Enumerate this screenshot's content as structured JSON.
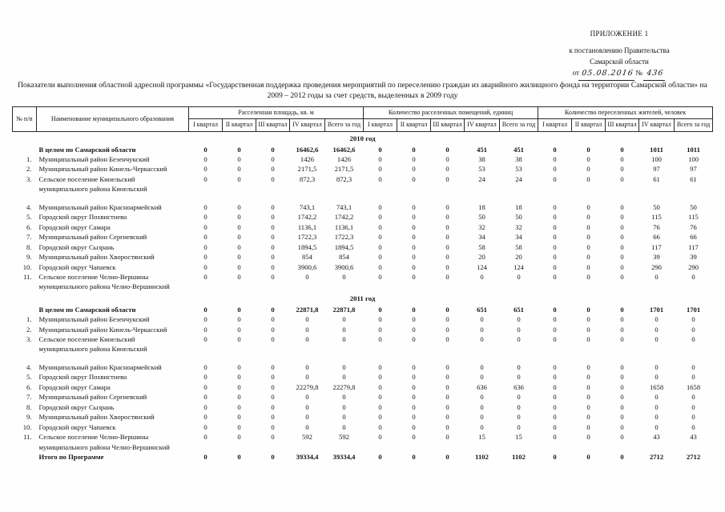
{
  "appendix": {
    "title": "ПРИЛОЖЕНИЕ 1",
    "line2": "к постановлению Правительства",
    "line3": "Самарской области",
    "date_prefix": "от",
    "date": "05.08.2016",
    "number_sign": "№",
    "number": "436"
  },
  "title": "Показатели выполнения областной адресной программы «Государственная поддержка проведения мероприятий по переселению граждан из аварийного жилищного фонда  на территории Самарской области» на 2009 –  2012 годы за счет средств, выделенных в 2009 году",
  "table": {
    "col_num_header": "№ п/п",
    "col_name_header": "Наименование муниципального образования",
    "groups": [
      "Расселенная площадь, кв. м",
      "Количество расселенных помещений, единиц",
      "Количество переселенных жителей, человек"
    ],
    "quarters": [
      "I квартал",
      "II квартал",
      "III квартал",
      "IV квартал",
      "Всего за год"
    ],
    "sections": [
      {
        "label": "2010 год",
        "rows": [
          {
            "num": "",
            "name": "В целом по Самарской области",
            "bold": true,
            "values": [
              "0",
              "0",
              "0",
              "16462,6",
              "16462,6",
              "0",
              "0",
              "0",
              "451",
              "451",
              "0",
              "0",
              "0",
              "1011",
              "1011"
            ]
          },
          {
            "num": "1.",
            "name": "Муниципальный район Безенчукский",
            "values": [
              "0",
              "0",
              "0",
              "1426",
              "1426",
              "0",
              "0",
              "0",
              "38",
              "38",
              "0",
              "0",
              "0",
              "100",
              "100"
            ]
          },
          {
            "num": "2.",
            "name": "Муниципальный район Кинель-Черкасский",
            "values": [
              "0",
              "0",
              "0",
              "2171,5",
              "2171,5",
              "0",
              "0",
              "0",
              "53",
              "53",
              "0",
              "0",
              "0",
              "97",
              "97"
            ]
          },
          {
            "num": "3.",
            "name": "Сельское поселение Кинельский\nмуниципального района Кинельский",
            "gap_after": true,
            "values": [
              "0",
              "0",
              "0",
              "872,3",
              "872,3",
              "0",
              "0",
              "0",
              "24",
              "24",
              "0",
              "0",
              "0",
              "61",
              "61"
            ]
          },
          {
            "num": "4.",
            "name": "Муниципальный район Красноармейский",
            "values": [
              "0",
              "0",
              "0",
              "743,1",
              "743,1",
              "0",
              "0",
              "0",
              "18",
              "18",
              "0",
              "0",
              "0",
              "50",
              "50"
            ]
          },
          {
            "num": "5.",
            "name": "Городской округ Похвистнево",
            "values": [
              "0",
              "0",
              "0",
              "1742,2",
              "1742,2",
              "0",
              "0",
              "0",
              "50",
              "50",
              "0",
              "0",
              "0",
              "115",
              "115"
            ]
          },
          {
            "num": "6.",
            "name": "Городской округ Самара",
            "values": [
              "0",
              "0",
              "0",
              "1136,1",
              "1136,1",
              "0",
              "0",
              "0",
              "32",
              "32",
              "0",
              "0",
              "0",
              "76",
              "76"
            ]
          },
          {
            "num": "7.",
            "name": "Муниципальный район Сергиевский",
            "values": [
              "0",
              "0",
              "0",
              "1722,3",
              "1722,3",
              "0",
              "0",
              "0",
              "34",
              "34",
              "0",
              "0",
              "0",
              "66",
              "66"
            ]
          },
          {
            "num": "8.",
            "name": "Городской округ Сызрань",
            "values": [
              "0",
              "0",
              "0",
              "1894,5",
              "1894,5",
              "0",
              "0",
              "0",
              "58",
              "58",
              "0",
              "0",
              "0",
              "117",
              "117"
            ]
          },
          {
            "num": "9.",
            "name": "Муниципальный район Хворостянский",
            "values": [
              "0",
              "0",
              "0",
              "854",
              "854",
              "0",
              "0",
              "0",
              "20",
              "20",
              "0",
              "0",
              "0",
              "39",
              "39"
            ]
          },
          {
            "num": "10.",
            "name": "Городской округ Чапаевск",
            "values": [
              "0",
              "0",
              "0",
              "3900,6",
              "3900,6",
              "0",
              "0",
              "0",
              "124",
              "124",
              "0",
              "0",
              "0",
              "290",
              "290"
            ]
          },
          {
            "num": "11.",
            "name": "Сельское поселение Челно-Вершины\nмуниципального района Челно-Вершинский",
            "values": [
              "0",
              "0",
              "0",
              "0",
              "0",
              "0",
              "0",
              "0",
              "0",
              "0",
              "0",
              "0",
              "0",
              "0",
              "0"
            ]
          }
        ]
      },
      {
        "label": "2011 год",
        "rows": [
          {
            "num": "",
            "name": "В целом по Самарской области",
            "bold": true,
            "values": [
              "0",
              "0",
              "0",
              "22871,8",
              "22871,8",
              "0",
              "0",
              "0",
              "651",
              "651",
              "0",
              "0",
              "0",
              "1701",
              "1701"
            ]
          },
          {
            "num": "1.",
            "name": "Муниципальный район Безенчукский",
            "values": [
              "0",
              "0",
              "0",
              "0",
              "0",
              "0",
              "0",
              "0",
              "0",
              "0",
              "0",
              "0",
              "0",
              "0",
              "0"
            ]
          },
          {
            "num": "2.",
            "name": "Муниципальный район Кинель-Черкасский",
            "values": [
              "0",
              "0",
              "0",
              "0",
              "0",
              "0",
              "0",
              "0",
              "0",
              "0",
              "0",
              "0",
              "0",
              "0",
              "0"
            ]
          },
          {
            "num": "3.",
            "name": "Сельское поселение Кинельский\nмуниципального района Кинельский",
            "gap_after": true,
            "values": [
              "0",
              "0",
              "0",
              "0",
              "0",
              "0",
              "0",
              "0",
              "0",
              "0",
              "0",
              "0",
              "0",
              "0",
              "0"
            ]
          },
          {
            "num": "4.",
            "name": "Муниципальный район Красноармейский",
            "values": [
              "0",
              "0",
              "0",
              "0",
              "0",
              "0",
              "0",
              "0",
              "0",
              "0",
              "0",
              "0",
              "0",
              "0",
              "0"
            ]
          },
          {
            "num": "5.",
            "name": "Городской округ Похвистнево",
            "values": [
              "0",
              "0",
              "0",
              "0",
              "0",
              "0",
              "0",
              "0",
              "0",
              "0",
              "0",
              "0",
              "0",
              "0",
              "0"
            ]
          },
          {
            "num": "6.",
            "name": "Городской округ Самара",
            "values": [
              "0",
              "0",
              "0",
              "22279,8",
              "22279,8",
              "0",
              "0",
              "0",
              "636",
              "636",
              "0",
              "0",
              "0",
              "1658",
              "1658"
            ]
          },
          {
            "num": "7.",
            "name": "Муниципальный район Сергиевский",
            "values": [
              "0",
              "0",
              "0",
              "0",
              "0",
              "0",
              "0",
              "0",
              "0",
              "0",
              "0",
              "0",
              "0",
              "0",
              "0"
            ]
          },
          {
            "num": "8.",
            "name": "Городской округ Сызрань",
            "values": [
              "0",
              "0",
              "0",
              "0",
              "0",
              "0",
              "0",
              "0",
              "0",
              "0",
              "0",
              "0",
              "0",
              "0",
              "0"
            ]
          },
          {
            "num": "9.",
            "name": "Муниципальный район Хворостянский",
            "values": [
              "0",
              "0",
              "0",
              "0",
              "0",
              "0",
              "0",
              "0",
              "0",
              "0",
              "0",
              "0",
              "0",
              "0",
              "0"
            ]
          },
          {
            "num": "10.",
            "name": "Городской округ Чапаевск",
            "values": [
              "0",
              "0",
              "0",
              "0",
              "0",
              "0",
              "0",
              "0",
              "0",
              "0",
              "0",
              "0",
              "0",
              "0",
              "0"
            ]
          },
          {
            "num": "11.",
            "name": "Сельское поселение Челно-Вершины\nмуниципального района Челно-Вершинский",
            "values": [
              "0",
              "0",
              "0",
              "592",
              "592",
              "0",
              "0",
              "0",
              "15",
              "15",
              "0",
              "0",
              "0",
              "43",
              "43"
            ]
          }
        ]
      }
    ],
    "total_row": {
      "num": "",
      "name": "Итого по Программе",
      "bold": true,
      "values": [
        "0",
        "0",
        "0",
        "39334,4",
        "39334,4",
        "0",
        "0",
        "0",
        "1102",
        "1102",
        "0",
        "0",
        "0",
        "2712",
        "2712"
      ]
    }
  }
}
